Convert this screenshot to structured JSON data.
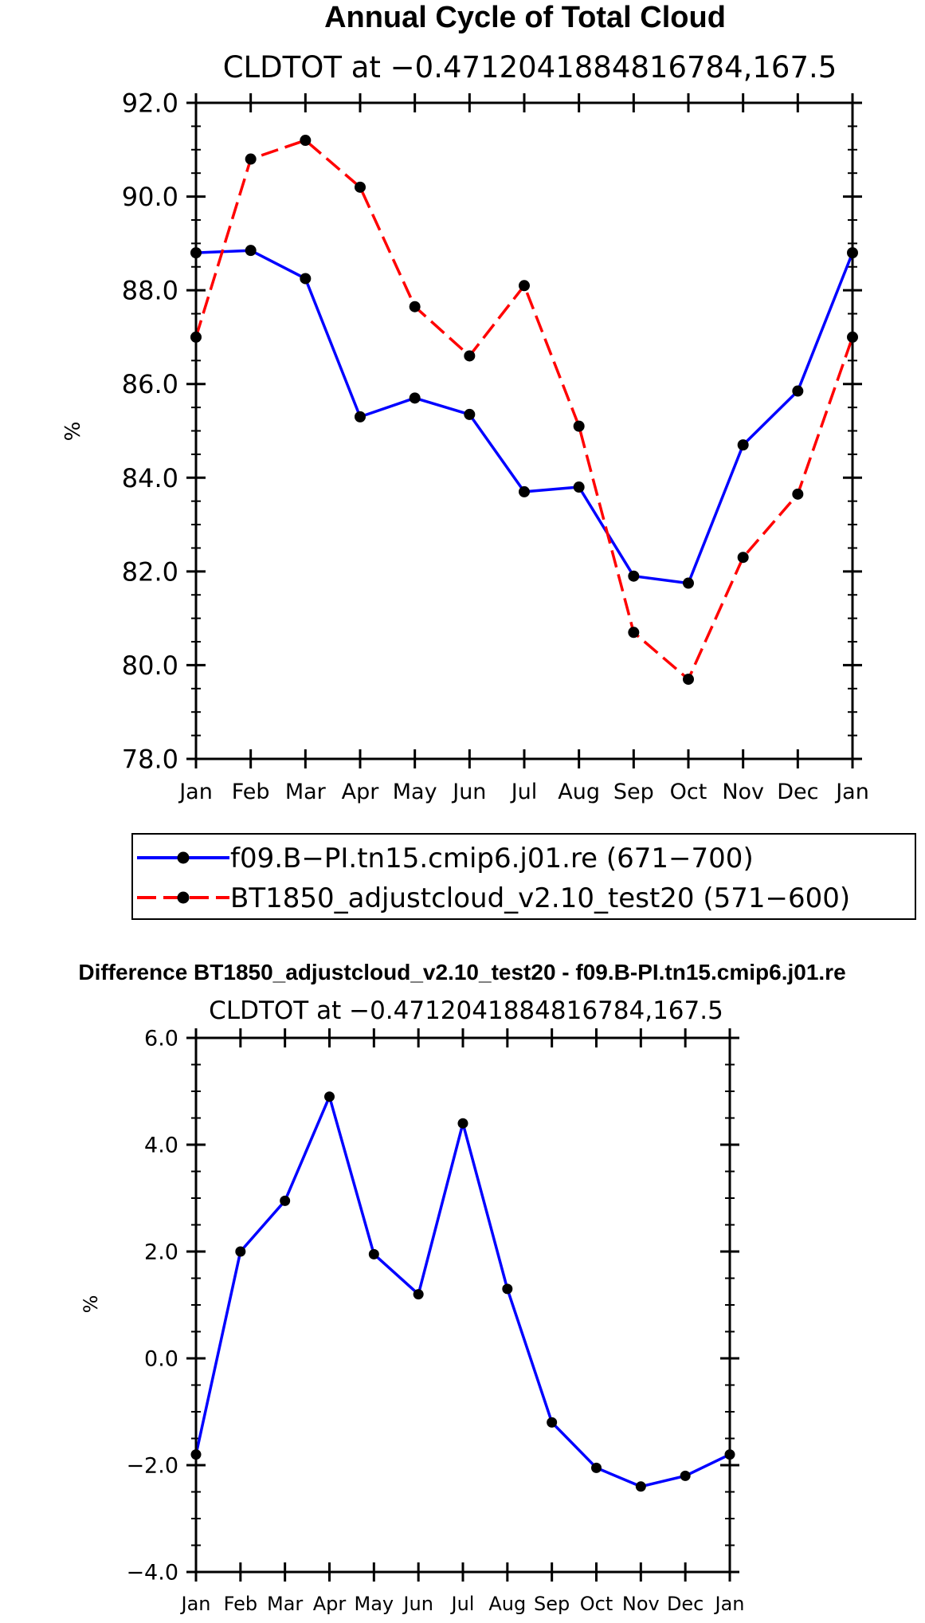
{
  "colors": {
    "series_a": "#0000ff",
    "series_b": "#ff0000",
    "marker": "#000000"
  },
  "chart_data": [
    {
      "type": "line",
      "title": "Annual Cycle of Total Cloud",
      "subtitle": "CLDTOT at −0.4712041884816784,167.5",
      "ylabel": "%",
      "xlabel": "",
      "ylim": [
        78.0,
        92.0
      ],
      "yticks": [
        "78.0",
        "80.0",
        "82.0",
        "84.0",
        "86.0",
        "88.0",
        "90.0",
        "92.0"
      ],
      "categories": [
        "Jan",
        "Feb",
        "Mar",
        "Apr",
        "May",
        "Jun",
        "Jul",
        "Aug",
        "Sep",
        "Oct",
        "Nov",
        "Dec",
        "Jan"
      ],
      "legend_position": "below",
      "series": [
        {
          "name": "f09.B−PI.tn15.cmip6.j01.re (671−700)",
          "style": "solid",
          "values": [
            88.8,
            88.85,
            88.25,
            85.3,
            85.7,
            85.35,
            83.7,
            83.8,
            81.9,
            81.75,
            84.7,
            85.85,
            88.8
          ]
        },
        {
          "name": "BT1850_adjustcloud_v2.10_test20 (571−600)",
          "style": "dashed",
          "values": [
            87.0,
            90.8,
            91.2,
            90.2,
            87.65,
            86.6,
            88.1,
            85.1,
            80.7,
            79.7,
            82.3,
            83.65,
            87.0
          ]
        }
      ]
    },
    {
      "type": "line",
      "title": "Difference BT1850_adjustcloud_v2.10_test20 - f09.B-PI.tn15.cmip6.j01.re",
      "subtitle": "CLDTOT at −0.4712041884816784,167.5",
      "ylabel": "%",
      "xlabel": "",
      "ylim": [
        -4.0,
        6.0
      ],
      "yticks": [
        "−4.0",
        "−2.0",
        "0.0",
        "2.0",
        "4.0",
        "6.0"
      ],
      "categories": [
        "Jan",
        "Feb",
        "Mar",
        "Apr",
        "May",
        "Jun",
        "Jul",
        "Aug",
        "Sep",
        "Oct",
        "Nov",
        "Dec",
        "Jan"
      ],
      "series": [
        {
          "name": "Difference",
          "style": "solid",
          "values": [
            -1.8,
            2.0,
            2.95,
            4.9,
            1.95,
            1.2,
            4.4,
            1.3,
            -1.2,
            -2.05,
            -2.4,
            -2.2,
            -1.8
          ]
        }
      ]
    }
  ]
}
